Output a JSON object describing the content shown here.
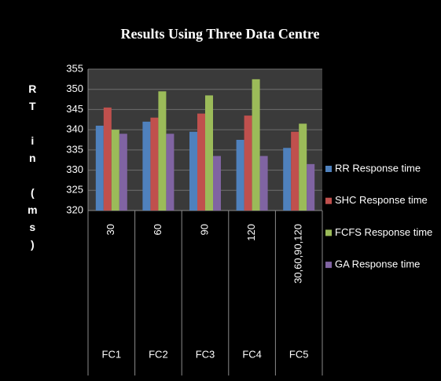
{
  "chart_data": {
    "type": "bar",
    "title": "Results Using Three Data Centre",
    "y_label": "RT in (ms)",
    "categories": [
      "30",
      "60",
      "90",
      "120",
      "30,60,90,120"
    ],
    "groups": [
      "FC1",
      "FC2",
      "FC3",
      "FC4",
      "FC5"
    ],
    "series": [
      {
        "name": "RR Response time",
        "color": "#4f81bd",
        "values": [
          341,
          342,
          339.5,
          337.5,
          335.5
        ]
      },
      {
        "name": "SHC Response time",
        "color": "#c0504d",
        "values": [
          345.5,
          343,
          344,
          343.5,
          339.5
        ]
      },
      {
        "name": "FCFS Response time",
        "color": "#9bbb59",
        "values": [
          340,
          349.5,
          348.5,
          352.5,
          341.5
        ]
      },
      {
        "name": "GA Response time",
        "color": "#8064a2",
        "values": [
          339,
          339,
          333.5,
          333.5,
          331.5
        ]
      }
    ],
    "ylim": [
      320,
      355
    ],
    "yticks": [
      320,
      325,
      330,
      335,
      340,
      345,
      350,
      355
    ],
    "grid": true
  }
}
